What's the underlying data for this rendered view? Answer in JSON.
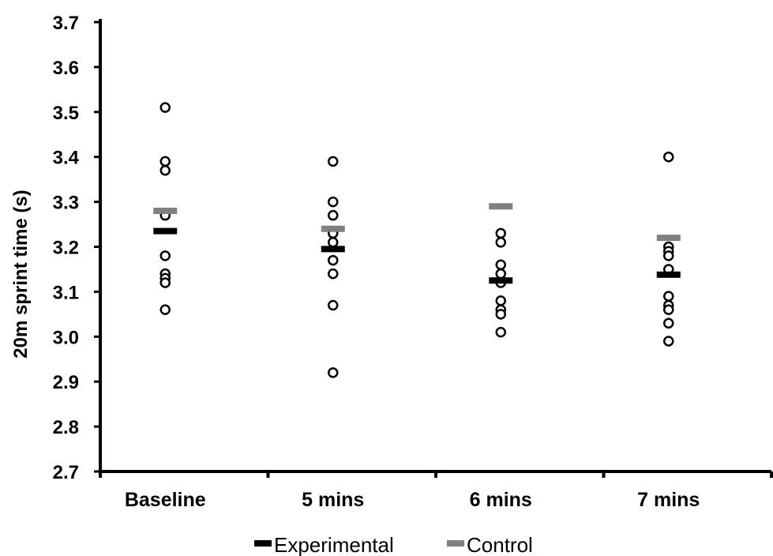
{
  "chart_data": {
    "type": "scatter",
    "ylabel": "20m sprint time (s)",
    "ylim": [
      2.7,
      3.7
    ],
    "yticks": [
      "2.7",
      "2.8",
      "2.9",
      "3.0",
      "3.1",
      "3.2",
      "3.3",
      "3.4",
      "3.5",
      "3.6",
      "3.7"
    ],
    "categories": [
      "Baseline",
      "5 mins",
      "6 mins",
      "7 mins"
    ],
    "individual_points": [
      [
        3.51,
        3.39,
        3.37,
        3.27,
        3.18,
        3.14,
        3.13,
        3.12,
        3.06
      ],
      [
        3.39,
        3.3,
        3.27,
        3.23,
        3.21,
        3.17,
        3.14,
        3.07,
        2.92
      ],
      [
        3.23,
        3.21,
        3.16,
        3.14,
        3.12,
        3.08,
        3.06,
        3.05,
        3.01
      ],
      [
        3.4,
        3.2,
        3.19,
        3.18,
        3.15,
        3.09,
        3.07,
        3.06,
        3.03,
        2.99
      ]
    ],
    "series": [
      {
        "name": "Experimental",
        "values": [
          3.235,
          3.195,
          3.125,
          3.138
        ],
        "color": "#000000"
      },
      {
        "name": "Control",
        "values": [
          3.28,
          3.24,
          3.29,
          3.22
        ],
        "color": "#808080"
      }
    ],
    "legend_position": "bottom",
    "grid": false
  }
}
